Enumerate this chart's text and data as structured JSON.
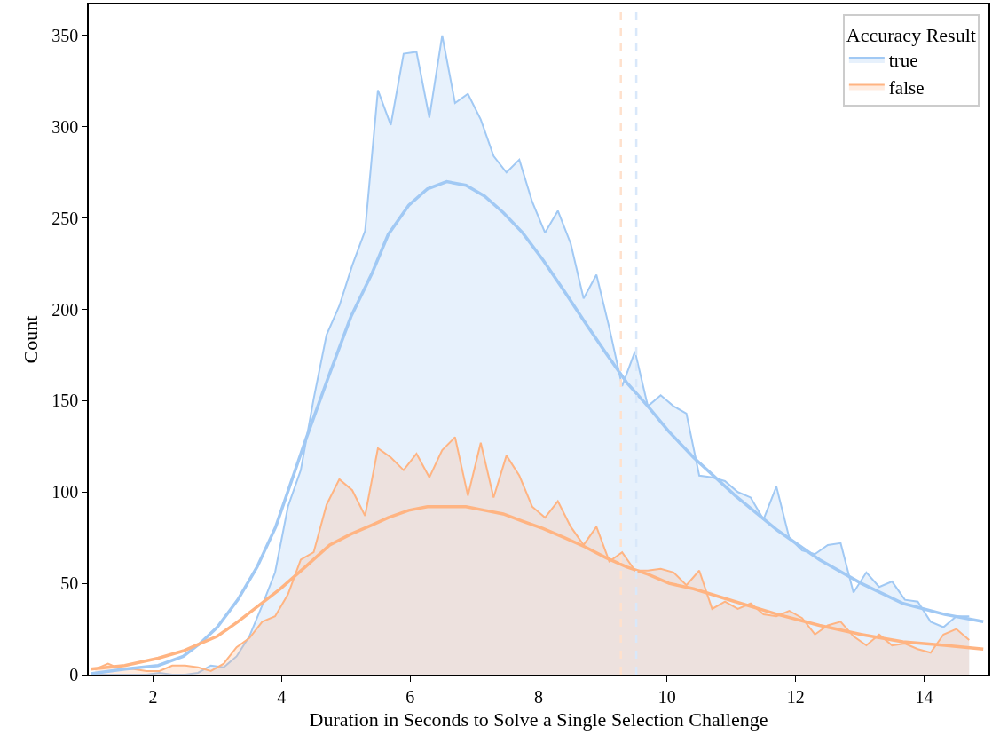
{
  "chart_data": {
    "type": "area",
    "xlabel": "Duration in Seconds to Solve a Single Selection Challenge",
    "ylabel": "Count",
    "legend_title": "Accuracy Result",
    "legend": "top right",
    "grid": false,
    "xlim": [
      1,
      15
    ],
    "xticks": [
      2,
      4,
      6,
      8,
      10,
      12,
      14
    ],
    "ylim": [
      0,
      367
    ],
    "yticks": [
      0,
      50,
      100,
      150,
      200,
      250,
      300,
      350
    ],
    "series": [
      {
        "name": "true",
        "color": "#a1c9f4",
        "x": [
          1.1,
          1.3,
          1.5,
          1.7,
          1.9,
          2.1,
          2.3,
          2.5,
          2.7,
          2.9,
          3.1,
          3.3,
          3.5,
          3.7,
          3.9,
          4.1,
          4.3,
          4.5,
          4.7,
          4.9,
          5.1,
          5.3,
          5.5,
          5.7,
          5.9,
          6.1,
          6.3,
          6.5,
          6.7,
          6.9,
          7.1,
          7.3,
          7.5,
          7.7,
          7.9,
          8.1,
          8.3,
          8.5,
          8.7,
          8.9,
          9.1,
          9.3,
          9.5,
          9.7,
          9.9,
          10.1,
          10.3,
          10.5,
          10.7,
          10.9,
          11.1,
          11.3,
          11.5,
          11.7,
          11.9,
          12.1,
          12.3,
          12.5,
          12.7,
          12.9,
          13.1,
          13.3,
          13.5,
          13.7,
          13.9,
          14.1,
          14.3,
          14.5,
          14.7
        ],
        "values": [
          0,
          0,
          0,
          0,
          0,
          1,
          0,
          0,
          1,
          5,
          4,
          10,
          21,
          38,
          56,
          92,
          112,
          151,
          186,
          202,
          224,
          243,
          320,
          301,
          340,
          341,
          305,
          350,
          313,
          318,
          304,
          284,
          275,
          282,
          259,
          242,
          254,
          236,
          206,
          219,
          190,
          158,
          177,
          147,
          153,
          147,
          143,
          109,
          108,
          106,
          100,
          97,
          85,
          103,
          75,
          68,
          66,
          71,
          72,
          45,
          56,
          48,
          51,
          41,
          40,
          29,
          26,
          32,
          32
        ]
      },
      {
        "name": "false",
        "color": "#ffb482",
        "x": [
          1.1,
          1.3,
          1.5,
          1.7,
          1.9,
          2.1,
          2.3,
          2.5,
          2.7,
          2.9,
          3.1,
          3.3,
          3.5,
          3.7,
          3.9,
          4.1,
          4.3,
          4.5,
          4.7,
          4.9,
          5.1,
          5.3,
          5.5,
          5.7,
          5.9,
          6.1,
          6.3,
          6.5,
          6.7,
          6.9,
          7.1,
          7.3,
          7.5,
          7.7,
          7.9,
          8.1,
          8.3,
          8.5,
          8.7,
          8.9,
          9.1,
          9.3,
          9.5,
          9.7,
          9.9,
          10.1,
          10.3,
          10.5,
          10.7,
          10.9,
          11.1,
          11.3,
          11.5,
          11.7,
          11.9,
          12.1,
          12.3,
          12.5,
          12.7,
          12.9,
          13.1,
          13.3,
          13.5,
          13.7,
          13.9,
          14.1,
          14.3,
          14.5,
          14.7
        ],
        "values": [
          3,
          6,
          3,
          3,
          2,
          2,
          5,
          5,
          4,
          2,
          6,
          15,
          20,
          29,
          32,
          44,
          63,
          67,
          93,
          107,
          101,
          87,
          124,
          119,
          112,
          121,
          108,
          123,
          130,
          98,
          127,
          97,
          120,
          109,
          92,
          86,
          95,
          81,
          71,
          81,
          62,
          67,
          57,
          57,
          58,
          56,
          49,
          57,
          36,
          40,
          36,
          39,
          33,
          32,
          35,
          31,
          22,
          27,
          29,
          21,
          16,
          22,
          16,
          17,
          14,
          12,
          22,
          25,
          19
        ]
      },
      {
        "type": "line",
        "color": "#a1c9f4",
        "x": [
          1.03,
          1.56,
          2.08,
          2.47,
          2.73,
          3.0,
          3.32,
          3.62,
          3.91,
          4.37,
          4.75,
          5.08,
          5.41,
          5.66,
          5.98,
          6.27,
          6.57,
          6.87,
          7.16,
          7.45,
          7.75,
          8.07,
          8.4,
          8.72,
          9.05,
          9.37,
          9.7,
          10.03,
          10.41,
          11.06,
          11.72,
          12.37,
          13.02,
          13.67,
          14.32,
          14.92
        ],
        "values": [
          0.5,
          3,
          5,
          10,
          17,
          26,
          41,
          59,
          81,
          128,
          165,
          196,
          220,
          241,
          257,
          266,
          270,
          268,
          262,
          253,
          242,
          227,
          210,
          193,
          176,
          160,
          147,
          133,
          119,
          98,
          79,
          63,
          50,
          39,
          33,
          29
        ]
      },
      {
        "type": "line",
        "color": "#ffb482",
        "x": [
          1.03,
          1.56,
          2.08,
          2.47,
          2.73,
          3.0,
          3.32,
          3.65,
          3.98,
          4.37,
          4.75,
          5.08,
          5.41,
          5.66,
          5.98,
          6.27,
          6.57,
          6.87,
          7.16,
          7.45,
          7.75,
          8.07,
          8.4,
          8.72,
          9.05,
          9.37,
          9.7,
          10.03,
          10.41,
          11.06,
          11.72,
          12.37,
          13.02,
          13.67,
          14.32,
          14.92
        ],
        "values": [
          3,
          5,
          9,
          13,
          17,
          21,
          29,
          38,
          47,
          59,
          71,
          77,
          82,
          86,
          90,
          92,
          92,
          92,
          90,
          88,
          84,
          80,
          75,
          70,
          64,
          59,
          55,
          50,
          47,
          40,
          33,
          27,
          22,
          18,
          16,
          14
        ]
      }
    ],
    "ref_lines": [
      {
        "axis": "x",
        "value": 9.28,
        "color": "#ffe1cd",
        "line_style": "dashed"
      },
      {
        "axis": "x",
        "value": 9.52,
        "color": "#d9e8fa",
        "line_style": "dashed"
      }
    ]
  }
}
